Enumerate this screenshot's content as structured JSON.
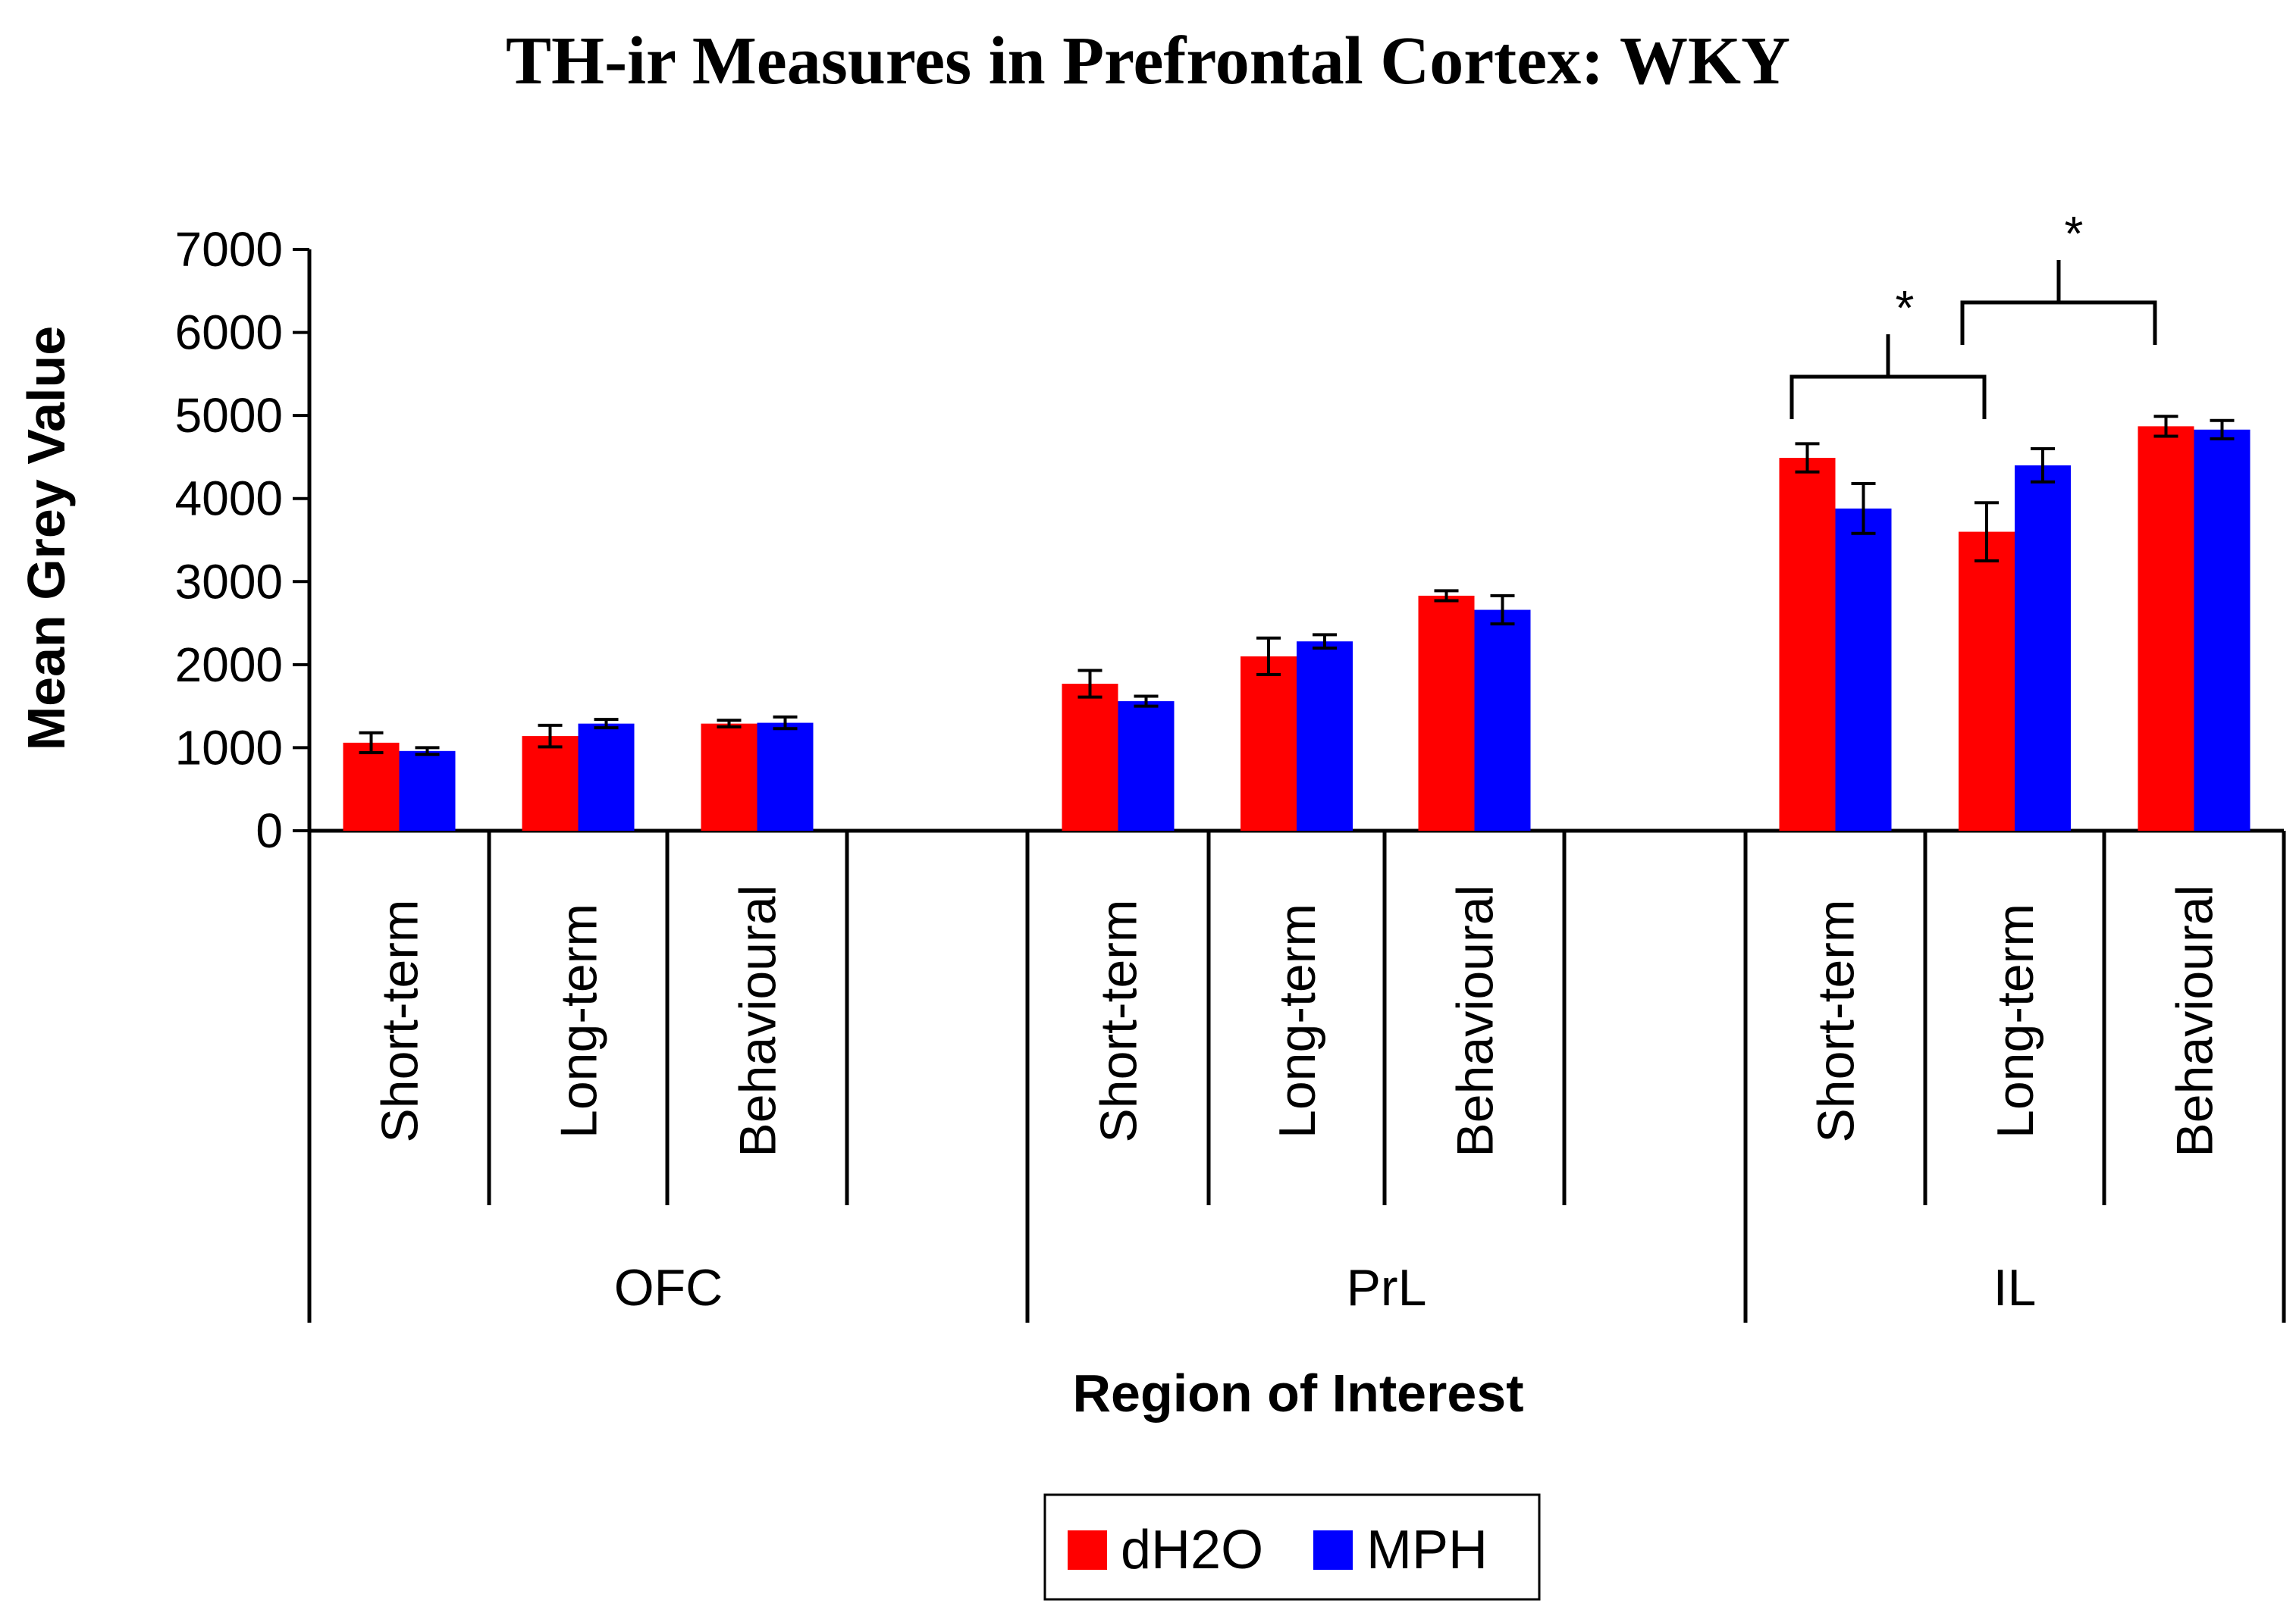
{
  "chart_data": {
    "type": "bar",
    "title": "TH-ir Measures in Prefrontal Cortex: WKY",
    "xlabel": "Region of Interest",
    "ylabel": "Mean Grey Value",
    "ylim": [
      0,
      7000
    ],
    "yticks": [
      0,
      1000,
      2000,
      3000,
      4000,
      5000,
      6000,
      7000
    ],
    "groups": [
      {
        "name": "OFC",
        "categories": [
          "Short-term",
          "Long-term",
          "Behavioural"
        ]
      },
      {
        "name": "PrL",
        "categories": [
          "Short-term",
          "Long-term",
          "Behavioural"
        ]
      },
      {
        "name": "IL",
        "categories": [
          "Short-term",
          "Long-term",
          "Behavioural"
        ]
      }
    ],
    "series": [
      {
        "name": "dH2O",
        "color": "#ff0000",
        "values": [
          1060,
          1140,
          1290,
          1770,
          2100,
          2830,
          4490,
          3600,
          4870
        ],
        "errors": [
          120,
          130,
          40,
          160,
          220,
          60,
          170,
          350,
          120
        ]
      },
      {
        "name": "MPH",
        "color": "#0000ff",
        "values": [
          960,
          1290,
          1300,
          1560,
          2280,
          2660,
          3880,
          4400,
          4830
        ]
      },
      {
        "dummy": true
      }
    ],
    "mph_errors": [
      40,
      50,
      70,
      60,
      80,
      170,
      300,
      200,
      110
    ],
    "legend_position": "bottom",
    "significance": [
      {
        "label": "*",
        "from_category": 6,
        "to_category": 7
      },
      {
        "label": "*",
        "from_category": 7,
        "to_category": 8
      }
    ]
  }
}
